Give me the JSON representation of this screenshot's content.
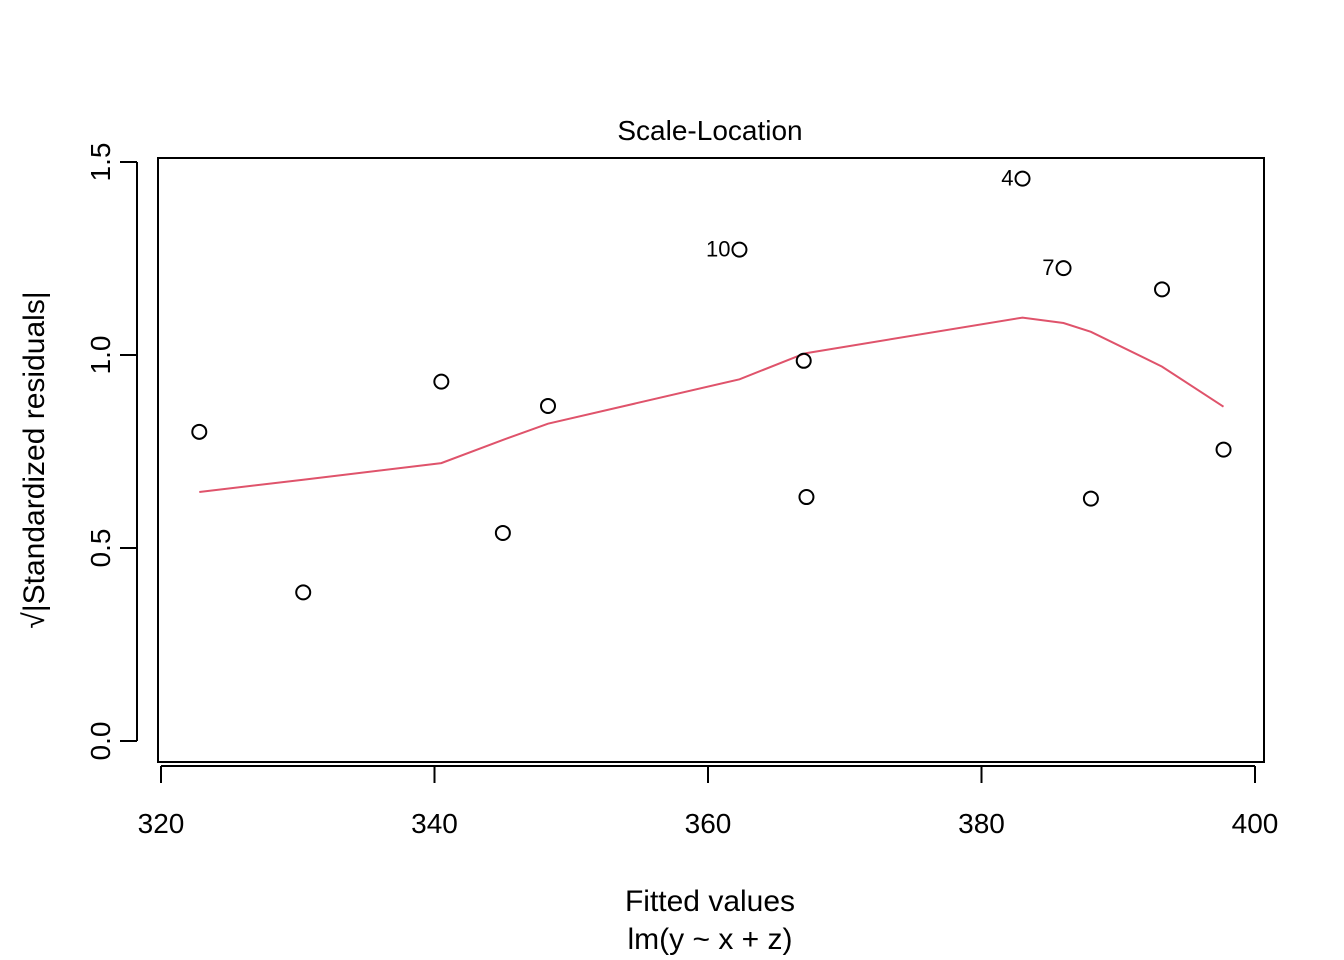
{
  "chart_data": {
    "type": "scatter",
    "title": "Scale-Location",
    "xlabel": "Fitted values",
    "xlabel2": "lm(y ~ x + z)",
    "ylabel": "√|Standardized residuals|",
    "xlim": [
      320,
      400
    ],
    "ylim": [
      0.0,
      1.5
    ],
    "x_ticks": [
      320,
      340,
      360,
      380,
      400
    ],
    "y_ticks": [
      0.0,
      0.5,
      1.0,
      1.5
    ],
    "x_tick_labels": [
      "320",
      "340",
      "360",
      "380",
      "400"
    ],
    "y_tick_labels": [
      "0.0",
      "0.5",
      "1.0",
      "1.5"
    ],
    "points": [
      {
        "x": 322.8,
        "y": 0.801,
        "label": ""
      },
      {
        "x": 330.4,
        "y": 0.385,
        "label": ""
      },
      {
        "x": 340.5,
        "y": 0.931,
        "label": ""
      },
      {
        "x": 345.0,
        "y": 0.539,
        "label": ""
      },
      {
        "x": 348.3,
        "y": 0.868,
        "label": ""
      },
      {
        "x": 362.3,
        "y": 1.273,
        "label": "10"
      },
      {
        "x": 367.0,
        "y": 0.985,
        "label": ""
      },
      {
        "x": 367.2,
        "y": 0.632,
        "label": ""
      },
      {
        "x": 383.0,
        "y": 1.457,
        "label": "4"
      },
      {
        "x": 386.0,
        "y": 1.225,
        "label": "7"
      },
      {
        "x": 388.0,
        "y": 0.628,
        "label": ""
      },
      {
        "x": 393.2,
        "y": 1.17,
        "label": ""
      },
      {
        "x": 397.7,
        "y": 0.755,
        "label": ""
      }
    ],
    "smooth_line": {
      "color": "#DF536B",
      "points": [
        {
          "x": 322.8,
          "y": 0.645
        },
        {
          "x": 330.4,
          "y": 0.677
        },
        {
          "x": 340.5,
          "y": 0.72
        },
        {
          "x": 345.0,
          "y": 0.78
        },
        {
          "x": 348.3,
          "y": 0.822
        },
        {
          "x": 362.3,
          "y": 0.937
        },
        {
          "x": 367.0,
          "y": 1.003
        },
        {
          "x": 367.2,
          "y": 1.005
        },
        {
          "x": 383.0,
          "y": 1.097
        },
        {
          "x": 386.0,
          "y": 1.083
        },
        {
          "x": 388.0,
          "y": 1.06
        },
        {
          "x": 393.2,
          "y": 0.97
        },
        {
          "x": 397.7,
          "y": 0.866
        }
      ]
    },
    "grid": false,
    "point_color": "#000000"
  }
}
